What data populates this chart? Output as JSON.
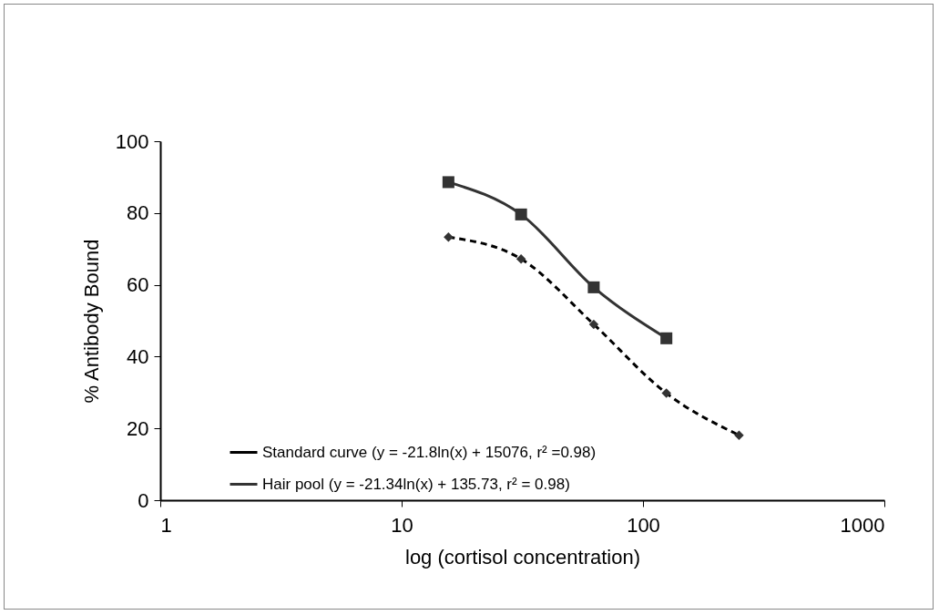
{
  "chart_data": {
    "type": "line",
    "xlabel": "log (cortisol concentration)",
    "ylabel": "% Antibody Bound",
    "log": "x",
    "xlim": [
      1,
      1000
    ],
    "xticks": [
      1,
      10,
      100,
      1000
    ],
    "ylim": [
      0,
      100
    ],
    "yticks": [
      0,
      20,
      40,
      60,
      80,
      100
    ],
    "grid": false,
    "legend": "bottom",
    "series": [
      {
        "name": "Standard curve (y = -21.8ln(x) + 15076, r² =0.98)",
        "color": "#000000",
        "marker": "diamond",
        "line_style": "dashed",
        "x": [
          15.625,
          31.25,
          62.5,
          125,
          250
        ],
        "values": [
          73.3,
          67.2,
          49.0,
          29.8,
          18.1
        ]
      },
      {
        "name": "Hair pool (y = -21.34ln(x) + 135.73, r² = 0.98)",
        "color": "#333333",
        "marker": "square",
        "line_style": "solid",
        "x": [
          15.625,
          31.25,
          62.5,
          125
        ],
        "values": [
          88.6,
          79.6,
          59.3,
          45.1
        ]
      }
    ]
  }
}
